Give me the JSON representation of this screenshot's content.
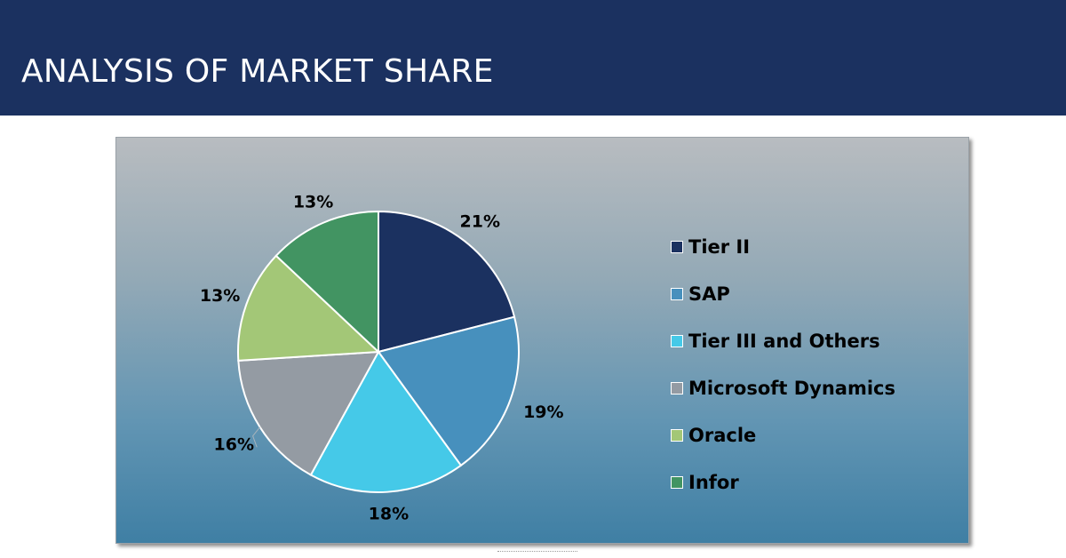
{
  "header": {
    "title": "ANALYSIS OF MARKET SHARE"
  },
  "chart_data": {
    "type": "pie",
    "title": "",
    "categories": [
      "Tier II",
      "SAP",
      "Tier III and Others",
      "Microsoft Dynamics",
      "Oracle",
      "Infor"
    ],
    "values": [
      21,
      19,
      18,
      16,
      13,
      13
    ],
    "labels": [
      "21%",
      "19%",
      "18%",
      "16%",
      "13%",
      "13%"
    ],
    "colors": [
      "#1b3160",
      "#4790bd",
      "#45c9e8",
      "#949ba3",
      "#a3c777",
      "#429462"
    ],
    "legend_position": "right",
    "start_angle": "12 o'clock",
    "direction": "clockwise"
  }
}
